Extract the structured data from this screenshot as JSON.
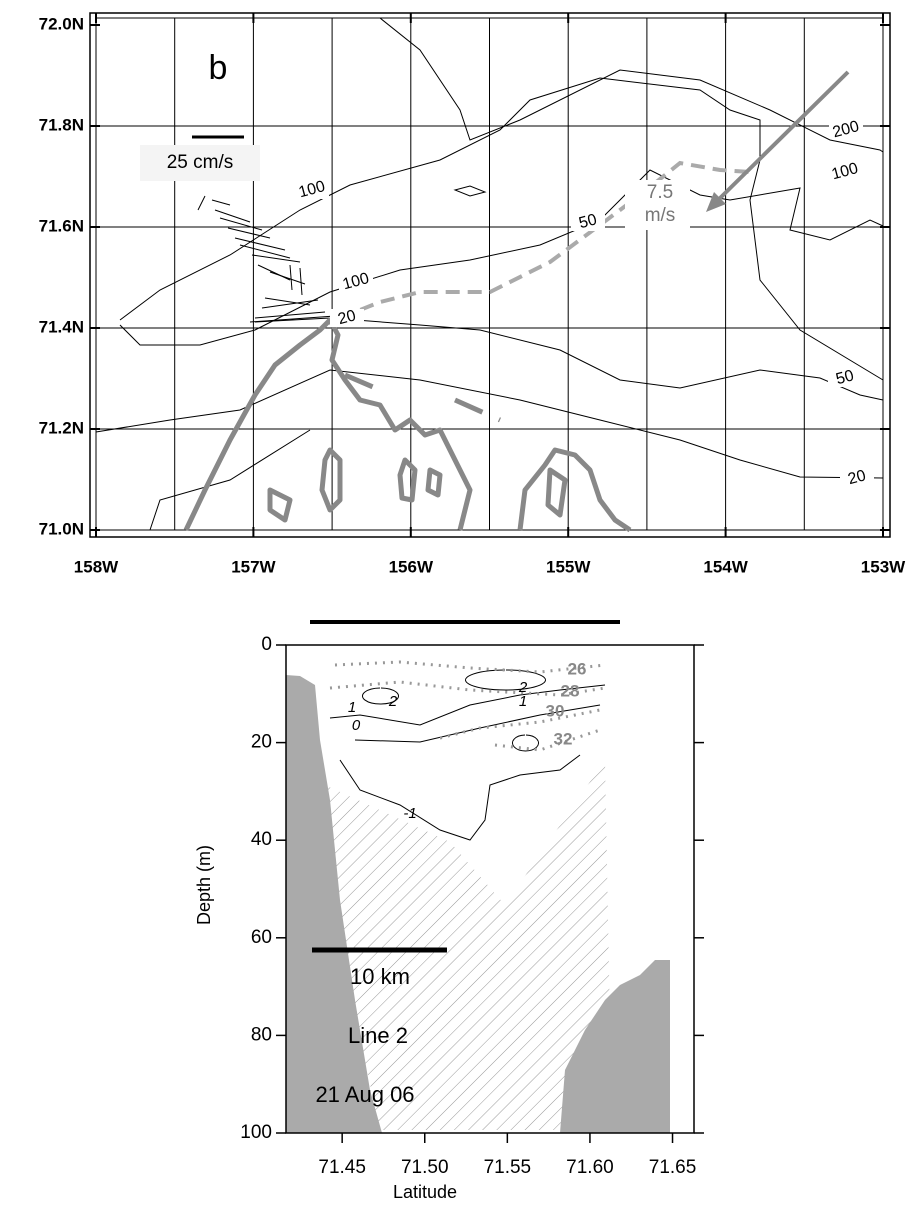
{
  "chart_data": [
    {
      "type": "map",
      "panel_label": "b",
      "scale_label": "25 cm/s",
      "wind_label": "7.5 m/s",
      "contour_labels": [
        100,
        200,
        100,
        50,
        100,
        20,
        50,
        20
      ],
      "xlim": [
        -158,
        -153
      ],
      "xticks": [
        {
          "value": -158,
          "label": "158W"
        },
        {
          "value": -157,
          "label": "157W"
        },
        {
          "value": -156,
          "label": "156W"
        },
        {
          "value": -155,
          "label": "155W"
        },
        {
          "value": -154,
          "label": "154W"
        },
        {
          "value": -153,
          "label": "153W"
        }
      ],
      "ylim": [
        71.0,
        72.0
      ],
      "yticks": [
        {
          "value": 71.0,
          "label": "71.0N"
        },
        {
          "value": 71.2,
          "label": "71.2N"
        },
        {
          "value": 71.4,
          "label": "71.4N"
        },
        {
          "value": 71.6,
          "label": "71.6N"
        },
        {
          "value": 71.8,
          "label": "71.8N"
        },
        {
          "value": 72.0,
          "label": "72.0N"
        }
      ],
      "grid": true
    },
    {
      "type": "contour",
      "xlabel": "Latitude",
      "ylabel": "Depth (m)",
      "annotations": [
        "10 km",
        "Line 2",
        "21 Aug 06"
      ],
      "contour_labels": [
        1,
        2,
        0,
        2,
        1,
        -1
      ],
      "salinity_labels": [
        26,
        28,
        30,
        32
      ],
      "xlim": [
        71.416,
        71.663
      ],
      "xticks": [
        71.45,
        {
          "value": 71.5,
          "label": "71.50"
        },
        71.55,
        {
          "value": 71.6,
          "label": "71.60"
        },
        71.65
      ],
      "ylim": [
        0,
        100
      ],
      "yticks": [
        0,
        20,
        40,
        60,
        80,
        100
      ]
    }
  ]
}
